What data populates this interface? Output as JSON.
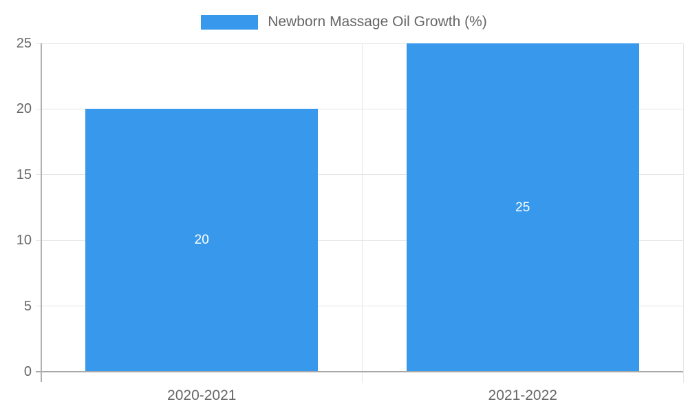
{
  "chart_data": {
    "type": "bar",
    "categories": [
      "2020-2021",
      "2021-2022"
    ],
    "series": [
      {
        "name": "Newborn Massage Oil Growth (%)",
        "values": [
          20,
          25
        ]
      }
    ],
    "bar_value_labels": [
      "20",
      "25"
    ],
    "ylim": [
      0,
      25
    ],
    "yticks": [
      0,
      5,
      10,
      15,
      20,
      25
    ],
    "grid": true,
    "legend_position": "top"
  },
  "colors": {
    "bar": "#3899ec",
    "bar_value_label": "#ffffff",
    "axis_text": "#666666",
    "gridline": "#e6e6e6",
    "y_axis_line": "#b0b0b0",
    "x_axis_line": "#a8a8a8"
  }
}
